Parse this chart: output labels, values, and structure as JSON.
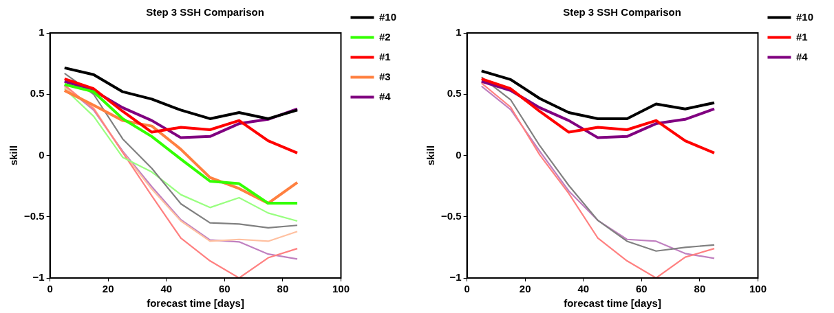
{
  "chart_data": [
    {
      "type": "line",
      "title": "Step 3 SSH Comparison",
      "xlabel": "forecast time [days]",
      "ylabel": "skill",
      "x": [
        5,
        15,
        25,
        35,
        45,
        55,
        65,
        75,
        85
      ],
      "xlim": [
        0,
        100
      ],
      "xticks": [
        0,
        20,
        40,
        60,
        80,
        100
      ],
      "ylim": [
        -1,
        1
      ],
      "yticks": [
        -1,
        -0.5,
        0,
        0.5,
        1
      ],
      "grid": false,
      "legend": "right",
      "marker": "none",
      "series": [
        {
          "color": "#808080",
          "values": [
            0.67,
            0.5,
            0.135,
            -0.105,
            -0.395,
            -0.55,
            -0.56,
            -0.59,
            -0.57
          ]
        },
        {
          "color": "#99ff80",
          "values": [
            0.545,
            0.32,
            -0.015,
            -0.135,
            -0.32,
            -0.425,
            -0.345,
            -0.47,
            -0.535
          ]
        },
        {
          "color": "#ff8080",
          "values": [
            0.575,
            0.38,
            0.025,
            -0.33,
            -0.675,
            -0.86,
            -1.0,
            -0.835,
            -0.76
          ]
        },
        {
          "color": "#ffc0a0",
          "values": [
            0.555,
            0.39,
            0.025,
            -0.275,
            -0.535,
            -0.7,
            -0.685,
            -0.7,
            -0.62
          ]
        },
        {
          "color": "#c080c0",
          "values": [
            0.565,
            0.37,
            0.035,
            -0.255,
            -0.525,
            -0.69,
            -0.705,
            -0.805,
            -0.845
          ]
        },
        {
          "name": "#10",
          "color": "#000000",
          "values": [
            0.715,
            0.66,
            0.52,
            0.46,
            0.37,
            0.3,
            0.35,
            0.3,
            0.37
          ]
        },
        {
          "name": "#2",
          "color": "#33ff00",
          "values": [
            0.58,
            0.52,
            0.3,
            0.155,
            -0.03,
            -0.21,
            -0.23,
            -0.39,
            -0.39
          ]
        },
        {
          "name": "#1",
          "color": "#ff0000",
          "values": [
            0.625,
            0.545,
            0.36,
            0.19,
            0.23,
            0.21,
            0.285,
            0.12,
            0.02
          ]
        },
        {
          "name": "#3",
          "color": "#ff8040",
          "values": [
            0.53,
            0.41,
            0.285,
            0.24,
            0.05,
            -0.18,
            -0.27,
            -0.39,
            -0.22
          ]
        },
        {
          "name": "#4",
          "color": "#800080",
          "values": [
            0.605,
            0.53,
            0.39,
            0.285,
            0.145,
            0.155,
            0.26,
            0.295,
            0.38
          ]
        }
      ]
    },
    {
      "type": "line",
      "title": "Step 3 SSH Comparison",
      "xlabel": "forecast time [days]",
      "ylabel": "skill",
      "x": [
        5,
        15,
        25,
        35,
        45,
        55,
        65,
        75,
        85
      ],
      "xlim": [
        0,
        100
      ],
      "xticks": [
        0,
        20,
        40,
        60,
        80,
        100
      ],
      "ylim": [
        -1,
        1
      ],
      "yticks": [
        -1,
        -0.5,
        0,
        0.5,
        1
      ],
      "grid": false,
      "legend": "right",
      "marker": "none",
      "series": [
        {
          "color": "#808080",
          "values": [
            0.64,
            0.455,
            0.08,
            -0.245,
            -0.53,
            -0.7,
            -0.78,
            -0.75,
            -0.73
          ]
        },
        {
          "color": "#ff8080",
          "values": [
            0.59,
            0.395,
            0.005,
            -0.31,
            -0.675,
            -0.86,
            -1.0,
            -0.83,
            -0.76
          ]
        },
        {
          "color": "#c080c0",
          "values": [
            0.565,
            0.375,
            0.035,
            -0.29,
            -0.53,
            -0.685,
            -0.7,
            -0.8,
            -0.84
          ]
        },
        {
          "name": "#10",
          "color": "#000000",
          "values": [
            0.69,
            0.62,
            0.465,
            0.35,
            0.3,
            0.3,
            0.42,
            0.38,
            0.43
          ]
        },
        {
          "name": "#1",
          "color": "#ff0000",
          "values": [
            0.625,
            0.545,
            0.36,
            0.19,
            0.23,
            0.21,
            0.285,
            0.12,
            0.02
          ]
        },
        {
          "name": "#4",
          "color": "#800080",
          "values": [
            0.605,
            0.53,
            0.39,
            0.285,
            0.145,
            0.155,
            0.26,
            0.295,
            0.38
          ]
        }
      ]
    }
  ]
}
